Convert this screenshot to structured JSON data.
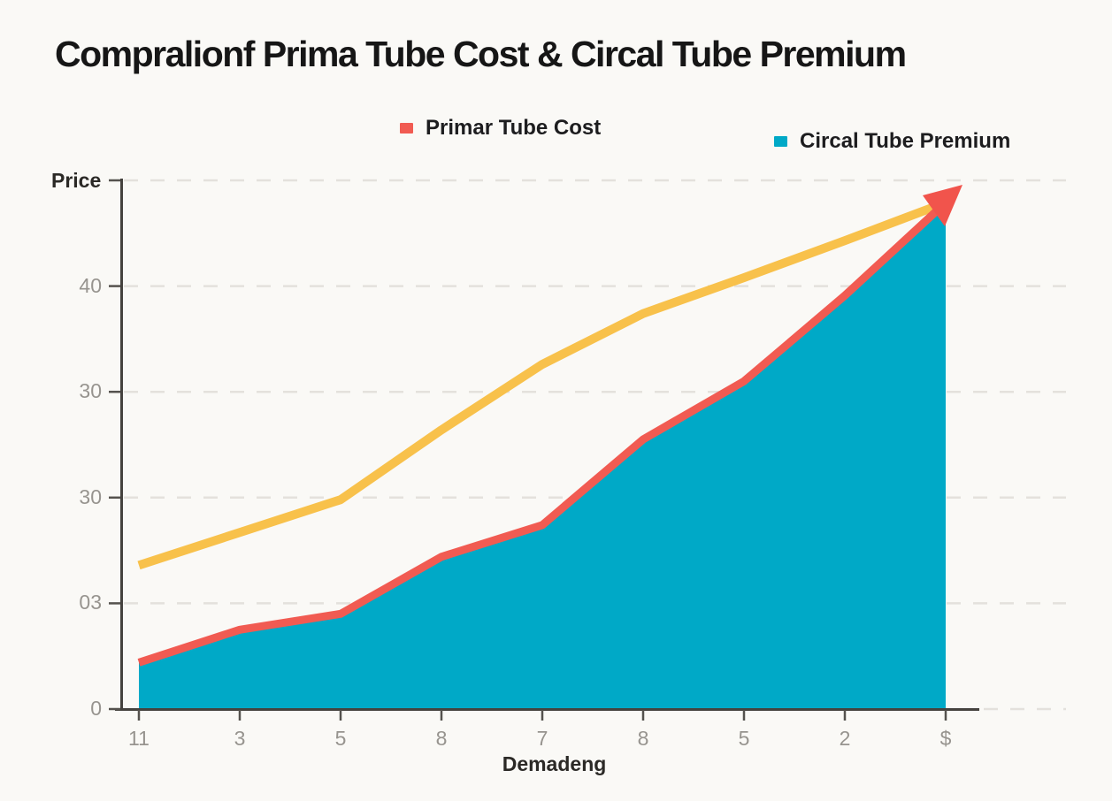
{
  "title": "Compralionf Prima Tube Cost  & Circal Tube Premium",
  "legend": [
    {
      "label": "Primar Tube Cost",
      "color": "#f15b52"
    },
    {
      "label": "Circal Tube Premium",
      "color": "#00a9c7"
    }
  ],
  "axes": {
    "y_title": "Price",
    "x_title": "Demadeng",
    "y_tick_labels_bottom_to_top": [
      "0",
      "03",
      "30",
      "30",
      "40"
    ],
    "x_tick_labels": [
      "11",
      "3",
      "5",
      "8",
      "7",
      "8",
      "5",
      "2",
      "$"
    ]
  },
  "chart_data": {
    "type": "area",
    "title": "Compralionf Prima Tube Cost  & Circal Tube Premium",
    "xlabel": "Demadeng",
    "ylabel": "Price",
    "x_categories": [
      "11",
      "3",
      "5",
      "8",
      "7",
      "8",
      "5",
      "2",
      "$"
    ],
    "y_tick_values": [
      0,
      10,
      20,
      30,
      40,
      50
    ],
    "y_tick_shown_labels": [
      "0",
      "03",
      "30",
      "30",
      "40",
      ""
    ],
    "ylim": [
      0,
      50
    ],
    "grid": "horizontal dashed",
    "legend_position": "top",
    "series": [
      {
        "name": "Primar Tube Cost",
        "style": "line with filled area below",
        "line_color": "#f15b52",
        "fill_color": "#00a9c7",
        "values": [
          4.4,
          7.5,
          9.0,
          14.4,
          17.4,
          25.5,
          31.0,
          39.1,
          47.9
        ]
      },
      {
        "name": "Unlabeled yellow line",
        "style": "line",
        "line_color": "#f8c14b",
        "values": [
          13.6,
          16.7,
          19.8,
          26.4,
          32.6,
          37.4,
          40.8,
          44.3,
          47.9
        ]
      }
    ],
    "annotation": "red arrowhead where both lines converge at top right"
  },
  "colors": {
    "background": "#faf9f6",
    "axis": "#45423e",
    "gridline": "#e4e1dc",
    "tick_text": "#97948f",
    "title_text": "#161616"
  }
}
